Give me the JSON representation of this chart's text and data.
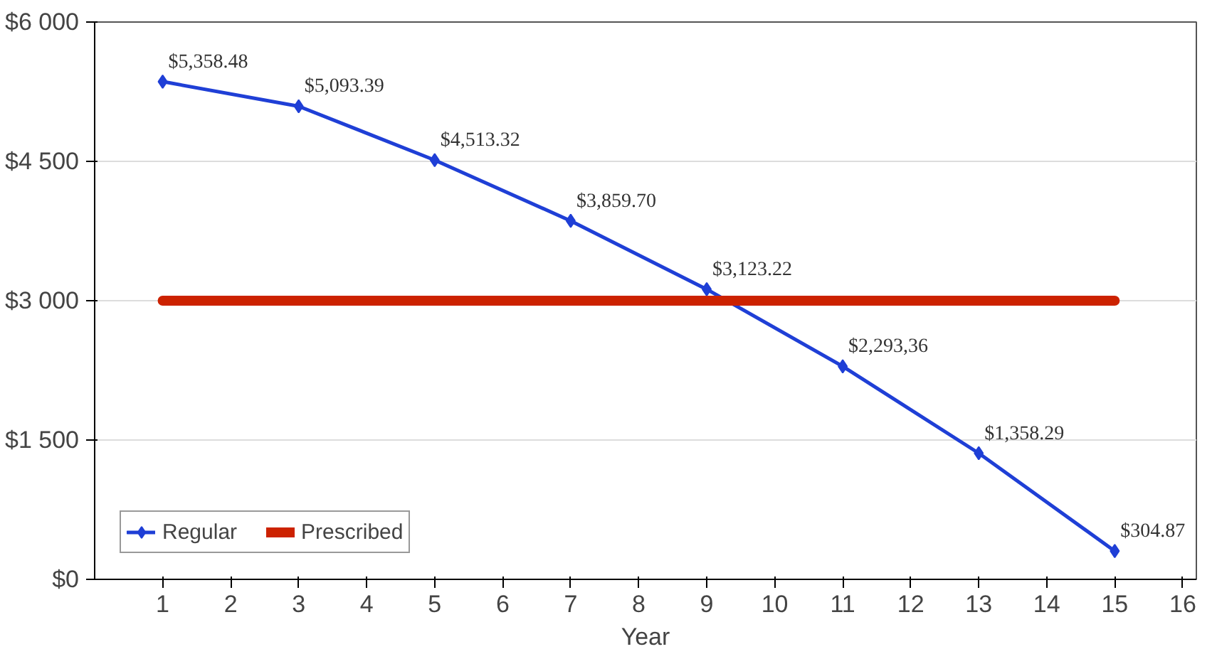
{
  "chart_data": {
    "type": "line",
    "xlabel": "Year",
    "x": [
      1,
      3,
      5,
      7,
      9,
      11,
      13,
      15
    ],
    "series": [
      {
        "name": "Regular",
        "color": "#1f3fd6",
        "marker": "diamond",
        "values": [
          5358.48,
          5093.39,
          4513.32,
          3859.7,
          3123.22,
          2293.36,
          1358.29,
          304.87
        ],
        "value_labels": [
          "$5,358.48",
          "$5,093.39",
          "$4,513.32",
          "$3,859.70",
          "$3,123.22",
          "$2,293,36",
          "$1,358.29",
          "$304.87"
        ]
      },
      {
        "name": "Prescribed",
        "color": "#cc2200",
        "x": [
          1,
          15
        ],
        "values": [
          3000,
          3000
        ]
      }
    ],
    "xlim": [
      0,
      16.2
    ],
    "xticks": [
      1,
      2,
      3,
      4,
      5,
      6,
      7,
      8,
      9,
      10,
      11,
      12,
      13,
      14,
      15,
      16
    ],
    "ylim": [
      0,
      6000
    ],
    "yticks": [
      {
        "value": 0,
        "label": "$0"
      },
      {
        "value": 1500,
        "label": "$1 500"
      },
      {
        "value": 3000,
        "label": "$3 000"
      },
      {
        "value": 4500,
        "label": "$4 500"
      },
      {
        "value": 6000,
        "label": "$6 000"
      }
    ],
    "grid": "y",
    "legend": "bottom left"
  }
}
